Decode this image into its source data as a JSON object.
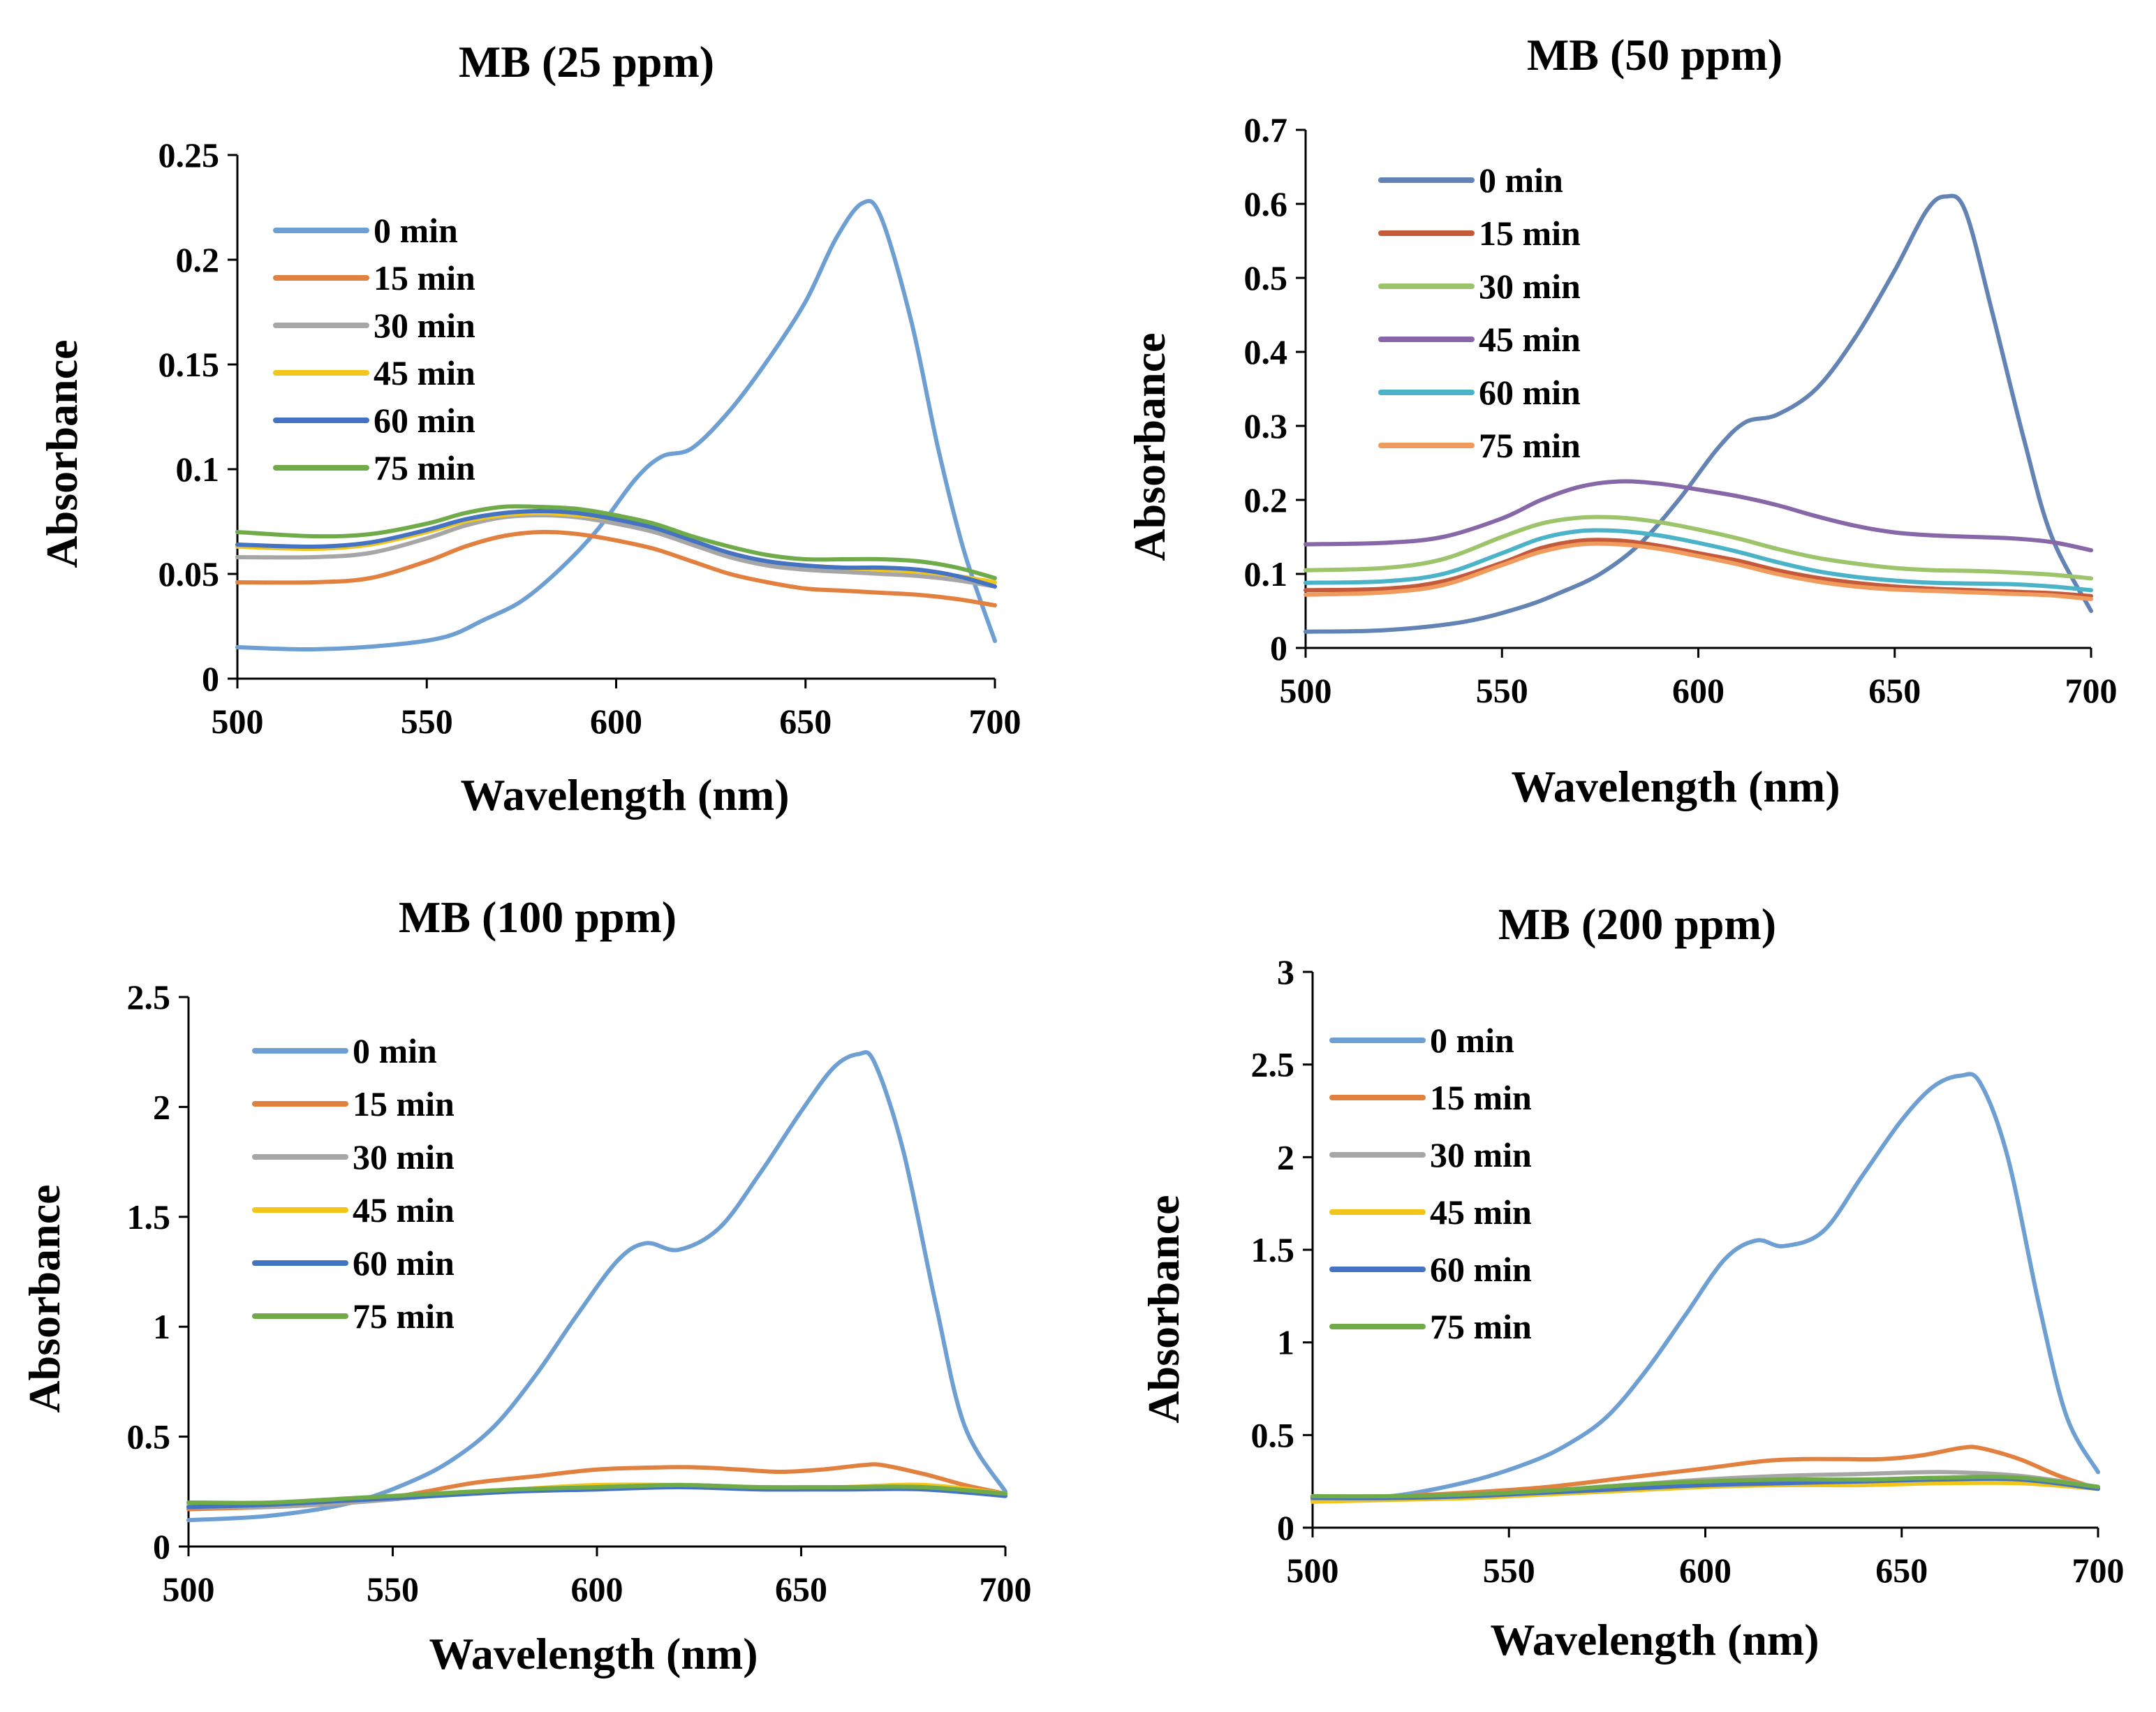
{
  "colors": {
    "blue": "#6e9fd3",
    "orange": "#e2813f",
    "gray": "#a6a6a6",
    "yellow": "#f2c51b",
    "darkblue": "#4473c3",
    "green": "#70ab4a",
    "slateblue": "#6283b4",
    "red": "#c55a3a",
    "lightgreen": "#9dc46b",
    "purple": "#8767a8",
    "teal": "#4bb3c7",
    "peach": "#f09a5c"
  },
  "chart_data": [
    {
      "type": "line",
      "title": "MB (25 ppm)",
      "xlabel": "Wavelength (nm)",
      "ylabel": "Absorbance",
      "xlim": [
        500,
        700
      ],
      "ylim": [
        0,
        0.25
      ],
      "xticks": [
        "500",
        "550",
        "600",
        "650",
        "700"
      ],
      "yticks": [
        "0",
        "0.05",
        "0.1",
        "0.15",
        "0.2",
        "0.25"
      ],
      "grid": false,
      "legend_position": "top-left",
      "series": [
        {
          "name": "0 min",
          "color": "#6e9fd3",
          "x": [
            500,
            520,
            540,
            555,
            565,
            575,
            585,
            595,
            605,
            612,
            620,
            630,
            640,
            650,
            658,
            665,
            670,
            678,
            685,
            692,
            700
          ],
          "y": [
            0.015,
            0.014,
            0.016,
            0.02,
            0.028,
            0.037,
            0.052,
            0.071,
            0.095,
            0.106,
            0.11,
            0.128,
            0.152,
            0.18,
            0.21,
            0.227,
            0.22,
            0.17,
            0.11,
            0.06,
            0.018
          ]
        },
        {
          "name": "15 min",
          "color": "#e2813f",
          "x": [
            500,
            520,
            535,
            550,
            560,
            570,
            580,
            590,
            600,
            610,
            620,
            630,
            640,
            650,
            660,
            670,
            680,
            690,
            700
          ],
          "y": [
            0.046,
            0.046,
            0.048,
            0.056,
            0.063,
            0.068,
            0.07,
            0.069,
            0.066,
            0.062,
            0.056,
            0.05,
            0.046,
            0.043,
            0.042,
            0.041,
            0.04,
            0.038,
            0.035
          ]
        },
        {
          "name": "30 min",
          "color": "#a6a6a6",
          "x": [
            500,
            520,
            535,
            550,
            560,
            570,
            580,
            590,
            600,
            610,
            620,
            630,
            640,
            650,
            660,
            670,
            680,
            690,
            700
          ],
          "y": [
            0.058,
            0.058,
            0.06,
            0.067,
            0.073,
            0.077,
            0.078,
            0.077,
            0.074,
            0.07,
            0.064,
            0.058,
            0.054,
            0.052,
            0.051,
            0.05,
            0.049,
            0.047,
            0.044
          ]
        },
        {
          "name": "45 min",
          "color": "#f2c51b",
          "x": [
            500,
            520,
            535,
            550,
            560,
            570,
            580,
            590,
            600,
            610,
            620,
            630,
            640,
            650,
            660,
            670,
            680,
            690,
            700
          ],
          "y": [
            0.063,
            0.062,
            0.064,
            0.07,
            0.075,
            0.078,
            0.079,
            0.078,
            0.076,
            0.072,
            0.066,
            0.06,
            0.056,
            0.054,
            0.053,
            0.052,
            0.051,
            0.049,
            0.046
          ]
        },
        {
          "name": "60 min",
          "color": "#4473c3",
          "x": [
            500,
            520,
            535,
            550,
            560,
            570,
            580,
            590,
            600,
            610,
            620,
            630,
            640,
            650,
            660,
            670,
            680,
            690,
            700
          ],
          "y": [
            0.064,
            0.063,
            0.065,
            0.071,
            0.076,
            0.079,
            0.08,
            0.079,
            0.076,
            0.072,
            0.066,
            0.06,
            0.056,
            0.054,
            0.053,
            0.053,
            0.052,
            0.049,
            0.044
          ]
        },
        {
          "name": "75 min",
          "color": "#70ab4a",
          "x": [
            500,
            520,
            535,
            550,
            560,
            570,
            580,
            590,
            600,
            610,
            620,
            630,
            640,
            650,
            660,
            670,
            680,
            690,
            700
          ],
          "y": [
            0.07,
            0.068,
            0.069,
            0.074,
            0.079,
            0.082,
            0.082,
            0.081,
            0.078,
            0.074,
            0.068,
            0.063,
            0.059,
            0.057,
            0.057,
            0.057,
            0.056,
            0.053,
            0.048
          ]
        }
      ]
    },
    {
      "type": "line",
      "title": "MB (50 ppm)",
      "xlabel": "Wavelength (nm)",
      "ylabel": "Absorbance",
      "xlim": [
        500,
        700
      ],
      "ylim": [
        0,
        0.7
      ],
      "xticks": [
        "500",
        "550",
        "600",
        "650",
        "700"
      ],
      "yticks": [
        "0",
        "0.1",
        "0.2",
        "0.3",
        "0.4",
        "0.5",
        "0.6",
        "0.7"
      ],
      "grid": false,
      "legend_position": "top-left",
      "series": [
        {
          "name": "0 min",
          "color": "#6283b4",
          "x": [
            500,
            520,
            540,
            555,
            565,
            575,
            585,
            595,
            605,
            612,
            620,
            630,
            640,
            650,
            658,
            663,
            668,
            675,
            683,
            690,
            700
          ],
          "y": [
            0.022,
            0.024,
            0.035,
            0.055,
            0.075,
            0.1,
            0.14,
            0.2,
            0.27,
            0.305,
            0.315,
            0.35,
            0.42,
            0.51,
            0.59,
            0.61,
            0.59,
            0.45,
            0.28,
            0.15,
            0.05
          ]
        },
        {
          "name": "15 min",
          "color": "#c55a3a",
          "x": [
            500,
            520,
            535,
            550,
            560,
            570,
            580,
            590,
            600,
            610,
            620,
            630,
            640,
            650,
            660,
            670,
            680,
            690,
            700
          ],
          "y": [
            0.078,
            0.08,
            0.09,
            0.115,
            0.135,
            0.145,
            0.145,
            0.138,
            0.128,
            0.118,
            0.105,
            0.095,
            0.088,
            0.083,
            0.08,
            0.078,
            0.076,
            0.074,
            0.07
          ]
        },
        {
          "name": "30 min",
          "color": "#9dc46b",
          "x": [
            500,
            520,
            535,
            550,
            560,
            570,
            580,
            590,
            600,
            610,
            620,
            630,
            640,
            650,
            660,
            670,
            680,
            690,
            700
          ],
          "y": [
            0.105,
            0.108,
            0.12,
            0.15,
            0.168,
            0.176,
            0.176,
            0.17,
            0.16,
            0.148,
            0.134,
            0.122,
            0.114,
            0.108,
            0.105,
            0.104,
            0.102,
            0.099,
            0.094
          ]
        },
        {
          "name": "45 min",
          "color": "#8767a8",
          "x": [
            500,
            520,
            535,
            550,
            560,
            570,
            580,
            590,
            600,
            610,
            620,
            630,
            640,
            650,
            660,
            670,
            680,
            690,
            700
          ],
          "y": [
            0.14,
            0.142,
            0.15,
            0.175,
            0.2,
            0.218,
            0.225,
            0.222,
            0.214,
            0.205,
            0.193,
            0.178,
            0.165,
            0.156,
            0.152,
            0.15,
            0.148,
            0.143,
            0.132
          ]
        },
        {
          "name": "60 min",
          "color": "#4bb3c7",
          "x": [
            500,
            520,
            535,
            550,
            560,
            570,
            580,
            590,
            600,
            610,
            620,
            630,
            640,
            650,
            660,
            670,
            680,
            690,
            700
          ],
          "y": [
            0.088,
            0.09,
            0.1,
            0.128,
            0.148,
            0.158,
            0.158,
            0.152,
            0.142,
            0.13,
            0.116,
            0.104,
            0.096,
            0.091,
            0.088,
            0.087,
            0.086,
            0.083,
            0.078
          ]
        },
        {
          "name": "75 min",
          "color": "#f09a5c",
          "x": [
            500,
            520,
            535,
            550,
            560,
            570,
            580,
            590,
            600,
            610,
            620,
            630,
            640,
            650,
            660,
            670,
            680,
            690,
            700
          ],
          "y": [
            0.072,
            0.075,
            0.085,
            0.112,
            0.13,
            0.14,
            0.14,
            0.134,
            0.124,
            0.113,
            0.1,
            0.09,
            0.083,
            0.079,
            0.077,
            0.075,
            0.073,
            0.071,
            0.066
          ]
        }
      ]
    },
    {
      "type": "line",
      "title": "MB (100 ppm)",
      "xlabel": "Wavelength (nm)",
      "ylabel": "Absorbance",
      "xlim": [
        500,
        700
      ],
      "ylim": [
        0,
        2.5
      ],
      "xticks": [
        "500",
        "550",
        "600",
        "650",
        "700"
      ],
      "yticks": [
        "0",
        "0.5",
        "1",
        "1.5",
        "2",
        "2.5"
      ],
      "grid": false,
      "legend_position": "top-left",
      "series": [
        {
          "name": "0 min",
          "color": "#6e9fd3",
          "x": [
            500,
            520,
            540,
            555,
            565,
            575,
            585,
            595,
            605,
            612,
            620,
            630,
            640,
            650,
            658,
            664,
            668,
            675,
            683,
            690,
            700
          ],
          "y": [
            0.12,
            0.14,
            0.2,
            0.3,
            0.4,
            0.55,
            0.78,
            1.05,
            1.3,
            1.38,
            1.35,
            1.45,
            1.7,
            1.98,
            2.18,
            2.24,
            2.2,
            1.8,
            1.1,
            0.55,
            0.25
          ]
        },
        {
          "name": "15 min",
          "color": "#e2813f",
          "x": [
            500,
            520,
            540,
            555,
            570,
            585,
            600,
            615,
            625,
            635,
            645,
            655,
            665,
            670,
            680,
            690,
            700
          ],
          "y": [
            0.17,
            0.18,
            0.2,
            0.24,
            0.29,
            0.32,
            0.35,
            0.36,
            0.36,
            0.35,
            0.34,
            0.35,
            0.37,
            0.37,
            0.33,
            0.28,
            0.24
          ]
        },
        {
          "name": "30 min",
          "color": "#a6a6a6",
          "x": [
            500,
            520,
            540,
            560,
            580,
            600,
            620,
            640,
            660,
            680,
            700
          ],
          "y": [
            0.18,
            0.18,
            0.2,
            0.23,
            0.26,
            0.27,
            0.28,
            0.27,
            0.27,
            0.27,
            0.23
          ]
        },
        {
          "name": "45 min",
          "color": "#f2c51b",
          "x": [
            500,
            520,
            540,
            560,
            580,
            600,
            620,
            640,
            660,
            680,
            700
          ],
          "y": [
            0.19,
            0.19,
            0.21,
            0.24,
            0.26,
            0.28,
            0.28,
            0.27,
            0.27,
            0.28,
            0.24
          ]
        },
        {
          "name": "60 min",
          "color": "#4473c3",
          "x": [
            500,
            520,
            540,
            560,
            580,
            600,
            620,
            640,
            660,
            680,
            700
          ],
          "y": [
            0.18,
            0.19,
            0.21,
            0.23,
            0.25,
            0.26,
            0.27,
            0.26,
            0.26,
            0.26,
            0.23
          ]
        },
        {
          "name": "75 min",
          "color": "#70ab4a",
          "x": [
            500,
            520,
            540,
            560,
            580,
            600,
            620,
            640,
            660,
            680,
            700
          ],
          "y": [
            0.2,
            0.2,
            0.22,
            0.24,
            0.26,
            0.27,
            0.28,
            0.27,
            0.27,
            0.27,
            0.24
          ]
        }
      ]
    },
    {
      "type": "line",
      "title": "MB (200 ppm)",
      "xlabel": "Wavelength (nm)",
      "ylabel": "Absorbance",
      "xlim": [
        500,
        700
      ],
      "ylim": [
        0,
        3
      ],
      "xticks": [
        "500",
        "550",
        "600",
        "650",
        "700"
      ],
      "yticks": [
        "0",
        "0.5",
        "1",
        "1.5",
        "2",
        "2.5",
        "3"
      ],
      "grid": false,
      "legend_position": "top-left",
      "series": [
        {
          "name": "0 min",
          "color": "#6e9fd3",
          "x": [
            500,
            520,
            540,
            555,
            565,
            575,
            585,
            595,
            605,
            613,
            620,
            630,
            640,
            650,
            658,
            665,
            670,
            677,
            685,
            692,
            700
          ],
          "y": [
            0.15,
            0.17,
            0.25,
            0.35,
            0.45,
            0.6,
            0.85,
            1.15,
            1.45,
            1.55,
            1.52,
            1.6,
            1.9,
            2.2,
            2.38,
            2.44,
            2.4,
            2.0,
            1.2,
            0.6,
            0.3
          ]
        },
        {
          "name": "15 min",
          "color": "#e2813f",
          "x": [
            500,
            520,
            540,
            560,
            580,
            600,
            615,
            625,
            635,
            645,
            655,
            665,
            670,
            680,
            690,
            700
          ],
          "y": [
            0.17,
            0.17,
            0.19,
            0.22,
            0.27,
            0.32,
            0.36,
            0.37,
            0.37,
            0.37,
            0.39,
            0.43,
            0.43,
            0.37,
            0.28,
            0.21
          ]
        },
        {
          "name": "30 min",
          "color": "#a6a6a6",
          "x": [
            500,
            520,
            540,
            560,
            580,
            600,
            620,
            640,
            660,
            680,
            700
          ],
          "y": [
            0.16,
            0.16,
            0.18,
            0.2,
            0.23,
            0.26,
            0.28,
            0.29,
            0.3,
            0.28,
            0.22
          ]
        },
        {
          "name": "45 min",
          "color": "#f2c51b",
          "x": [
            500,
            520,
            540,
            560,
            580,
            600,
            620,
            640,
            660,
            680,
            700
          ],
          "y": [
            0.14,
            0.15,
            0.16,
            0.18,
            0.2,
            0.22,
            0.23,
            0.23,
            0.24,
            0.24,
            0.21
          ]
        },
        {
          "name": "60 min",
          "color": "#4473c3",
          "x": [
            500,
            520,
            540,
            560,
            580,
            600,
            620,
            640,
            660,
            680,
            700
          ],
          "y": [
            0.16,
            0.16,
            0.17,
            0.19,
            0.21,
            0.23,
            0.24,
            0.25,
            0.26,
            0.26,
            0.21
          ]
        },
        {
          "name": "75 min",
          "color": "#70ab4a",
          "x": [
            500,
            520,
            540,
            560,
            580,
            600,
            620,
            640,
            660,
            680,
            700
          ],
          "y": [
            0.17,
            0.17,
            0.18,
            0.2,
            0.23,
            0.25,
            0.26,
            0.26,
            0.27,
            0.27,
            0.22
          ]
        }
      ]
    }
  ]
}
